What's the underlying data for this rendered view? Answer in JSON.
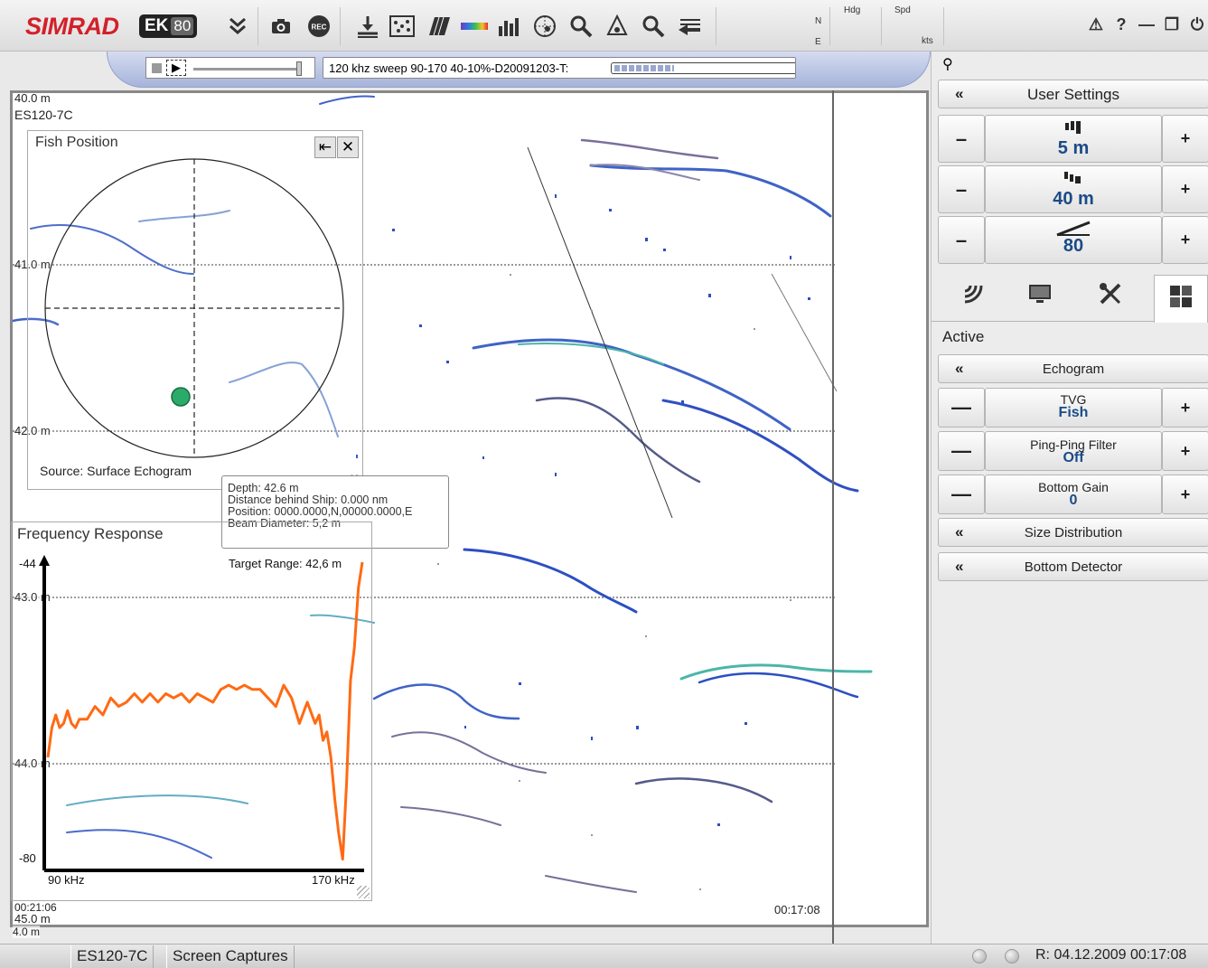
{
  "topbar": {
    "logo_text": "SIMRAD",
    "logo_badge": "EK",
    "logo_badge_model": "80",
    "nav_n": "N",
    "nav_e": "E",
    "hdg_label": "Hdg",
    "spd_label": "Spd",
    "kts_label": "kts",
    "alarm_icon": "⚠",
    "help_icon": "?",
    "minimize_icon": "—",
    "restore_icon": "❐",
    "power_icon": "⏻"
  },
  "replay": {
    "filename": "120 khz sweep 90-170 40-10%-D20091203-T:",
    "progress_fraction": 0.33
  },
  "echogram": {
    "channel": "ES120-7C",
    "depth_labels": [
      "40.0 m",
      "41.0 m",
      "42.0 m",
      "43.0 m",
      "44.0 m",
      "45.0 m"
    ],
    "time_left": "00:21:06",
    "time_right": "00:17:08",
    "scale_bottom": "4.0 m"
  },
  "fish_position": {
    "title": "Fish Position",
    "source": "Source: Surface Echogram",
    "pin_icon": "⇤",
    "close_icon": "✕"
  },
  "tooltip": {
    "depth": "Depth: 42.6 m",
    "distance": "Distance behind Ship: 0.000 nm",
    "position": "Position: 0000.0000,N,00000.0000,E",
    "beam": "Beam Diameter: 5,2 m"
  },
  "freq_response": {
    "title": "Frequency Response",
    "target_range": "Target Range: 42,6 m",
    "y_top": "-44",
    "y_bottom": "-80",
    "x_left": "90 kHz",
    "x_right": "170 kHz"
  },
  "chart_data": {
    "type": "line",
    "title": "Frequency Response",
    "xlabel": "",
    "ylabel": "",
    "xlim": [
      90,
      170
    ],
    "ylim": [
      -80,
      -44
    ],
    "series": [
      {
        "color": "#ff6a13",
        "x": [
          90,
          91,
          92,
          93,
          94,
          95,
          96,
          97,
          98,
          100,
          102,
          104,
          106,
          108,
          110,
          112,
          114,
          116,
          118,
          120,
          122,
          124,
          126,
          128,
          130,
          132,
          134,
          136,
          138,
          140,
          142,
          144,
          146,
          148,
          150,
          152,
          154,
          156,
          158,
          159,
          160,
          161,
          162,
          163,
          164,
          165,
          166,
          167,
          168,
          169,
          170
        ],
        "y": [
          -67,
          -63.5,
          -62,
          -63.5,
          -63,
          -61.5,
          -63,
          -63.5,
          -62.5,
          -62.5,
          -61,
          -62,
          -60,
          -61,
          -60.5,
          -59.5,
          -60.5,
          -59.5,
          -60.5,
          -59.5,
          -60,
          -59.5,
          -60.5,
          -59.5,
          -60,
          -60.5,
          -59,
          -58.5,
          -59,
          -58.5,
          -59,
          -59,
          -60,
          -61,
          -58.5,
          -60,
          -63,
          -60.5,
          -63,
          -62,
          -65,
          -64,
          -67,
          -72,
          -76,
          -79,
          -70,
          -58,
          -54,
          -47,
          -44
        ]
      }
    ]
  },
  "right_panel": {
    "pin_icon": "⚲",
    "user_settings": "User Settings",
    "range_start_value": "5 m",
    "range_value": "40 m",
    "gain_value": "80",
    "active_label": "Active",
    "echogram_btn": "Echogram",
    "tvg_label": "TVG",
    "tvg_value": "Fish",
    "ppf_label": "Ping-Ping Filter",
    "ppf_value": "Off",
    "bottom_gain_label": "Bottom Gain",
    "bottom_gain_value": "0",
    "size_dist": "Size Distribution",
    "bottom_detector": "Bottom Detector",
    "collapse_chevron": "«",
    "minus": "—",
    "plus": "+",
    "minus_short": "–"
  },
  "statusbar": {
    "tab1": "ES120-7C",
    "tab2": "Screen Captures",
    "time": "R: 04.12.2009   00:17:08"
  }
}
